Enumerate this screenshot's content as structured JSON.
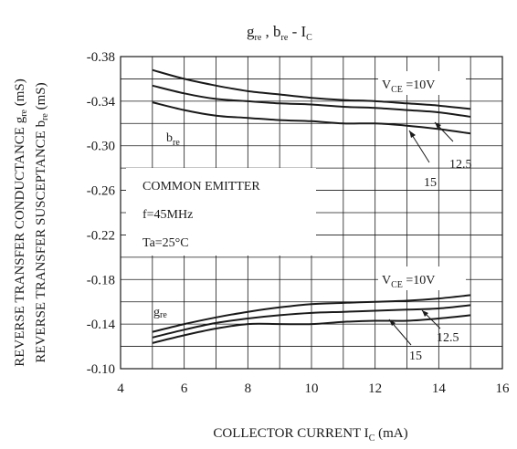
{
  "chart_data": {
    "type": "line",
    "title": {
      "g": "g",
      "g_sub": "re",
      "sep": " , ",
      "b": "b",
      "b_sub": "re",
      "dash": " - ",
      "i": "I",
      "i_sub": "C"
    },
    "xlabel": {
      "main": "COLLECTOR CURRENT I",
      "sub": "C",
      "unit": " (mA)"
    },
    "ylabel_1": {
      "main": "REVERSE TRANSFER CONDUCTANCE g",
      "sub": "re",
      "unit": " (mS)"
    },
    "ylabel_2": {
      "main": "REVERSE TRANSFER SUSCEPTANCE b",
      "sub": "re",
      "unit": " (mS)"
    },
    "xlim": [
      4,
      16
    ],
    "ylim": [
      -0.1,
      -0.38
    ],
    "x_ticks": [
      4,
      6,
      8,
      10,
      12,
      14,
      16
    ],
    "x_tick_labels": [
      "4",
      "6",
      "8",
      "10",
      "12",
      "14",
      "16"
    ],
    "y_ticks": [
      -0.38,
      -0.34,
      -0.3,
      -0.26,
      -0.22,
      -0.18,
      -0.14,
      -0.1
    ],
    "y_tick_labels": [
      "-0.38",
      "-0.34",
      "-0.30",
      "-0.26",
      "-0.22",
      "-0.18",
      "-0.14",
      "-0.10"
    ],
    "grid": true,
    "series": [
      {
        "group": "bre",
        "vce": "10",
        "x": [
          5,
          6,
          7,
          8,
          9,
          10,
          11,
          12,
          13,
          14,
          15
        ],
        "values": [
          -0.368,
          -0.36,
          -0.354,
          -0.349,
          -0.346,
          -0.343,
          -0.341,
          -0.34,
          -0.338,
          -0.336,
          -0.333
        ]
      },
      {
        "group": "bre",
        "vce": "12.5",
        "x": [
          5,
          6,
          7,
          8,
          9,
          10,
          11,
          12,
          13,
          14,
          15
        ],
        "values": [
          -0.354,
          -0.347,
          -0.342,
          -0.34,
          -0.338,
          -0.337,
          -0.335,
          -0.334,
          -0.332,
          -0.33,
          -0.326
        ]
      },
      {
        "group": "bre",
        "vce": "15",
        "x": [
          5,
          6,
          7,
          8,
          9,
          10,
          11,
          12,
          13,
          14,
          15
        ],
        "values": [
          -0.339,
          -0.332,
          -0.327,
          -0.325,
          -0.323,
          -0.322,
          -0.32,
          -0.32,
          -0.318,
          -0.315,
          -0.311
        ]
      },
      {
        "group": "gre",
        "vce": "10",
        "x": [
          5,
          6,
          7,
          8,
          9,
          10,
          11,
          12,
          13,
          14,
          15
        ],
        "values": [
          -0.133,
          -0.14,
          -0.146,
          -0.151,
          -0.155,
          -0.158,
          -0.159,
          -0.16,
          -0.161,
          -0.163,
          -0.166
        ]
      },
      {
        "group": "gre",
        "vce": "12.5",
        "x": [
          5,
          6,
          7,
          8,
          9,
          10,
          11,
          12,
          13,
          14,
          15
        ],
        "values": [
          -0.128,
          -0.135,
          -0.141,
          -0.145,
          -0.148,
          -0.15,
          -0.151,
          -0.152,
          -0.153,
          -0.154,
          -0.157
        ]
      },
      {
        "group": "gre",
        "vce": "15",
        "x": [
          5,
          6,
          7,
          8,
          9,
          10,
          11,
          12,
          13,
          14,
          15
        ],
        "values": [
          -0.123,
          -0.13,
          -0.136,
          -0.14,
          -0.14,
          -0.14,
          -0.142,
          -0.143,
          -0.143,
          -0.145,
          -0.148
        ]
      }
    ],
    "annotations": {
      "bre_label": {
        "main": "b",
        "sub": "re"
      },
      "gre_label": {
        "main": "g",
        "sub": "re"
      },
      "vce_top": {
        "main": "V",
        "sub": "CE",
        "rest": " =10V"
      },
      "vce_bottom": {
        "main": "V",
        "sub": "CE",
        "rest": " =10V"
      },
      "top_12_5": "12.5",
      "top_15": "15",
      "bottom_12_5": "12.5",
      "bottom_15": "15",
      "conditions": [
        "COMMON EMITTER",
        "f=45MHz",
        "Ta=25°C"
      ]
    }
  }
}
